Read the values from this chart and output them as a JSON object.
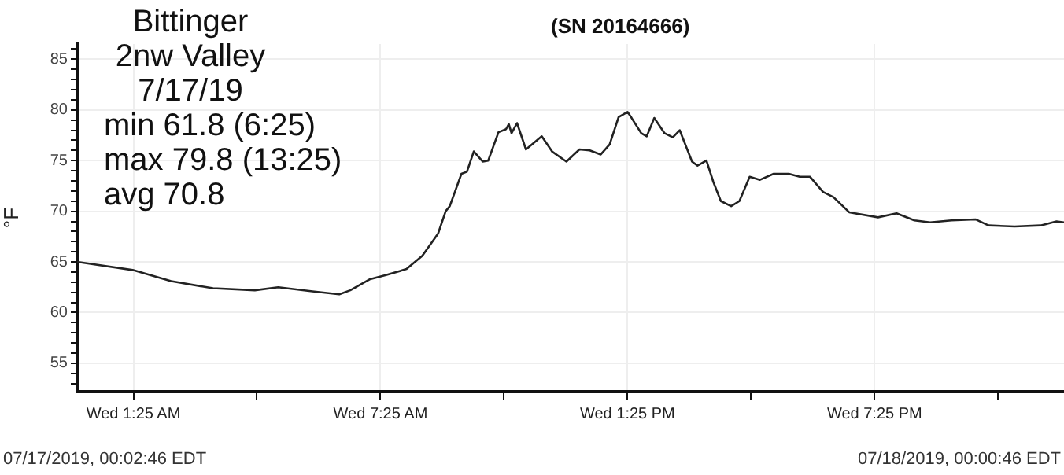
{
  "chart_data": {
    "type": "line",
    "title": "Bittinger\n2nw Valley\n7/17/19",
    "subtitle": "(SN 20164666)",
    "ylabel": "°F",
    "annotations": [
      "min 61.8 (6:25)",
      "max 79.8 (13:25)",
      "avg 70.8",
      "07/17/2019, 00:02:46 EDT",
      "07/18/2019, 00:00:46 EDT"
    ],
    "x": [
      "2019-07-17T00:03",
      "2019-07-17T01:24",
      "2019-07-17T02:20",
      "2019-07-17T03:21",
      "2019-07-17T04:22",
      "2019-07-17T04:56",
      "2019-07-17T05:46",
      "2019-07-17T06:25",
      "2019-07-17T06:41",
      "2019-07-17T07:10",
      "2019-07-17T07:33",
      "2019-07-17T08:03",
      "2019-07-17T08:26",
      "2019-07-17T08:49",
      "2019-07-17T09:00",
      "2019-07-17T09:06",
      "2019-07-17T09:23",
      "2019-07-17T09:31",
      "2019-07-17T09:41",
      "2019-07-17T09:54",
      "2019-07-17T10:02",
      "2019-07-17T10:17",
      "2019-07-17T10:28",
      "2019-07-17T10:32",
      "2019-07-17T10:36",
      "2019-07-17T10:44",
      "2019-07-17T10:57",
      "2019-07-17T11:06",
      "2019-07-17T11:20",
      "2019-07-17T11:35",
      "2019-07-17T11:56",
      "2019-07-17T12:15",
      "2019-07-17T12:30",
      "2019-07-17T12:46",
      "2019-07-17T12:59",
      "2019-07-17T13:12",
      "2019-07-17T13:25",
      "2019-07-17T13:31",
      "2019-07-17T13:45",
      "2019-07-17T13:53",
      "2019-07-17T14:04",
      "2019-07-17T14:19",
      "2019-07-17T14:31",
      "2019-07-17T14:41",
      "2019-07-17T14:59",
      "2019-07-17T15:07",
      "2019-07-17T15:20",
      "2019-07-17T15:30",
      "2019-07-17T15:41",
      "2019-07-17T15:56",
      "2019-07-17T16:08",
      "2019-07-17T16:23",
      "2019-07-17T16:38",
      "2019-07-17T16:58",
      "2019-07-17T17:20",
      "2019-07-17T17:36",
      "2019-07-17T17:51",
      "2019-07-17T18:10",
      "2019-07-17T18:25",
      "2019-07-17T18:48",
      "2019-07-17T19:30",
      "2019-07-17T19:57",
      "2019-07-17T20:23",
      "2019-07-17T20:46",
      "2019-07-17T21:17",
      "2019-07-17T21:52",
      "2019-07-17T22:11",
      "2019-07-17T22:49",
      "2019-07-17T23:27",
      "2019-07-17T23:50",
      "2019-07-18T00:01"
    ],
    "series": [
      {
        "color": "#222222",
        "values": [
          65.0,
          64.2,
          63.1,
          62.4,
          62.2,
          62.5,
          62.1,
          61.8,
          62.2,
          63.3,
          63.7,
          64.3,
          65.6,
          67.8,
          70.0,
          70.5,
          73.7,
          73.9,
          75.9,
          74.9,
          75.0,
          77.8,
          78.1,
          78.6,
          77.7,
          78.7,
          76.1,
          76.6,
          77.4,
          75.9,
          74.9,
          76.1,
          76.0,
          75.6,
          76.6,
          79.3,
          79.8,
          79.2,
          77.7,
          77.4,
          79.2,
          77.7,
          77.3,
          78.0,
          74.9,
          74.5,
          75.0,
          72.9,
          71.0,
          70.5,
          71.0,
          73.4,
          73.1,
          73.7,
          73.7,
          73.4,
          73.4,
          71.9,
          71.4,
          69.9,
          69.4,
          69.8,
          69.1,
          68.9,
          69.1,
          69.2,
          68.6,
          68.5,
          68.6,
          69.0,
          68.9
        ]
      }
    ],
    "xlim": [
      "2019-07-17T00:03",
      "2019-07-18T00:01"
    ],
    "xticks": [
      {
        "value": "2019-07-17T01:25",
        "label": "Wed 1:25 AM"
      },
      {
        "value": "2019-07-17T04:25",
        "label": null
      },
      {
        "value": "2019-07-17T07:25",
        "label": "Wed 7:25 AM"
      },
      {
        "value": "2019-07-17T10:25",
        "label": null
      },
      {
        "value": "2019-07-17T13:25",
        "label": "Wed 1:25 PM"
      },
      {
        "value": "2019-07-17T16:25",
        "label": null
      },
      {
        "value": "2019-07-17T19:25",
        "label": "Wed 7:25 PM"
      },
      {
        "value": "2019-07-17T22:25",
        "label": null
      }
    ],
    "ylim": [
      52.2,
      86.5
    ],
    "yticks": [
      {
        "value": 53,
        "label": null
      },
      {
        "value": 54,
        "label": null
      },
      55,
      {
        "value": 56,
        "label": null
      },
      {
        "value": 57,
        "label": null
      },
      {
        "value": 58,
        "label": null
      },
      {
        "value": 59,
        "label": null
      },
      60,
      {
        "value": 61,
        "label": null
      },
      {
        "value": 62,
        "label": null
      },
      {
        "value": 63,
        "label": null
      },
      {
        "value": 64,
        "label": null
      },
      65,
      {
        "value": 66,
        "label": null
      },
      {
        "value": 67,
        "label": null
      },
      {
        "value": 68,
        "label": null
      },
      {
        "value": 69,
        "label": null
      },
      70,
      {
        "value": 71,
        "label": null
      },
      {
        "value": 72,
        "label": null
      },
      {
        "value": 73,
        "label": null
      },
      {
        "value": 74,
        "label": null
      },
      75,
      {
        "value": 76,
        "label": null
      },
      {
        "value": 77,
        "label": null
      },
      {
        "value": 78,
        "label": null
      },
      {
        "value": 79,
        "label": null
      },
      80,
      {
        "value": 81,
        "label": null
      },
      {
        "value": 82,
        "label": null
      },
      {
        "value": 83,
        "label": null
      },
      {
        "value": 84,
        "label": null
      },
      85,
      {
        "value": 86,
        "label": null
      }
    ],
    "grid": true,
    "legend": false,
    "marker": "none",
    "line_style": "solid"
  }
}
